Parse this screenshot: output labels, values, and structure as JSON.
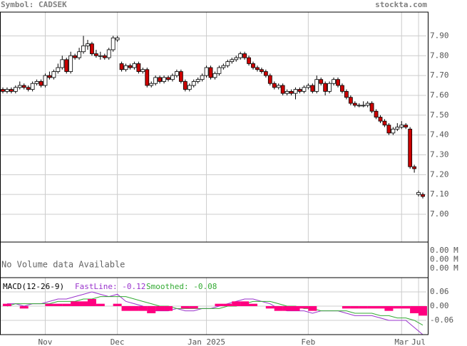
{
  "chart_data": {
    "type": "candlestick",
    "symbol": "Symbol: CADSEK",
    "site": "stockta.com",
    "candles": [
      [
        7.63,
        7.64,
        7.61,
        7.62
      ],
      [
        7.62,
        7.64,
        7.61,
        7.63
      ],
      [
        7.63,
        7.64,
        7.61,
        7.62
      ],
      [
        7.62,
        7.65,
        7.61,
        7.64
      ],
      [
        7.64,
        7.67,
        7.63,
        7.65
      ],
      [
        7.65,
        7.66,
        7.63,
        7.64
      ],
      [
        7.64,
        7.65,
        7.62,
        7.63
      ],
      [
        7.63,
        7.67,
        7.62,
        7.66
      ],
      [
        7.66,
        7.68,
        7.65,
        7.67
      ],
      [
        7.67,
        7.68,
        7.64,
        7.65
      ],
      [
        7.65,
        7.71,
        7.64,
        7.7
      ],
      [
        7.7,
        7.72,
        7.68,
        7.69
      ],
      [
        7.69,
        7.73,
        7.68,
        7.72
      ],
      [
        7.72,
        7.76,
        7.71,
        7.74
      ],
      [
        7.74,
        7.8,
        7.73,
        7.78
      ],
      [
        7.78,
        7.79,
        7.71,
        7.72
      ],
      [
        7.72,
        7.82,
        7.71,
        7.8
      ],
      [
        7.8,
        7.81,
        7.78,
        7.79
      ],
      [
        7.79,
        7.84,
        7.78,
        7.82
      ],
      [
        7.82,
        7.9,
        7.81,
        7.85
      ],
      [
        7.85,
        7.88,
        7.83,
        7.86
      ],
      [
        7.86,
        7.87,
        7.8,
        7.81
      ],
      [
        7.81,
        7.83,
        7.79,
        7.8
      ],
      [
        7.8,
        7.82,
        7.78,
        7.8
      ],
      [
        7.8,
        7.81,
        7.78,
        7.79
      ],
      [
        7.79,
        7.84,
        7.78,
        7.83
      ],
      [
        7.83,
        7.9,
        7.82,
        7.89
      ],
      [
        7.88,
        7.9,
        7.87,
        7.89
      ],
      [
        7.76,
        7.77,
        7.72,
        7.73
      ],
      [
        7.73,
        7.76,
        7.72,
        7.75
      ],
      [
        7.75,
        7.76,
        7.73,
        7.74
      ],
      [
        7.74,
        7.77,
        7.73,
        7.76
      ],
      [
        7.76,
        7.77,
        7.71,
        7.72
      ],
      [
        7.72,
        7.74,
        7.71,
        7.73
      ],
      [
        7.73,
        7.74,
        7.64,
        7.65
      ],
      [
        7.65,
        7.67,
        7.64,
        7.66
      ],
      [
        7.66,
        7.7,
        7.65,
        7.69
      ],
      [
        7.69,
        7.7,
        7.66,
        7.67
      ],
      [
        7.67,
        7.7,
        7.66,
        7.69
      ],
      [
        7.69,
        7.7,
        7.67,
        7.68
      ],
      [
        7.68,
        7.71,
        7.67,
        7.7
      ],
      [
        7.7,
        7.73,
        7.69,
        7.72
      ],
      [
        7.72,
        7.73,
        7.66,
        7.67
      ],
      [
        7.67,
        7.68,
        7.62,
        7.63
      ],
      [
        7.63,
        7.66,
        7.62,
        7.65
      ],
      [
        7.65,
        7.68,
        7.64,
        7.67
      ],
      [
        7.67,
        7.69,
        7.66,
        7.68
      ],
      [
        7.68,
        7.71,
        7.67,
        7.7
      ],
      [
        7.7,
        7.75,
        7.69,
        7.74
      ],
      [
        7.74,
        7.75,
        7.68,
        7.69
      ],
      [
        7.69,
        7.72,
        7.68,
        7.71
      ],
      [
        7.71,
        7.75,
        7.7,
        7.74
      ],
      [
        7.74,
        7.76,
        7.73,
        7.75
      ],
      [
        7.75,
        7.78,
        7.74,
        7.77
      ],
      [
        7.77,
        7.79,
        7.76,
        7.78
      ],
      [
        7.78,
        7.8,
        7.77,
        7.79
      ],
      [
        7.79,
        7.82,
        7.78,
        7.81
      ],
      [
        7.81,
        7.82,
        7.78,
        7.79
      ],
      [
        7.79,
        7.8,
        7.75,
        7.76
      ],
      [
        7.76,
        7.77,
        7.73,
        7.74
      ],
      [
        7.74,
        7.75,
        7.72,
        7.73
      ],
      [
        7.73,
        7.74,
        7.71,
        7.72
      ],
      [
        7.72,
        7.73,
        7.69,
        7.7
      ],
      [
        7.7,
        7.71,
        7.65,
        7.66
      ],
      [
        7.66,
        7.67,
        7.63,
        7.64
      ],
      [
        7.64,
        7.66,
        7.63,
        7.65
      ],
      [
        7.65,
        7.66,
        7.6,
        7.61
      ],
      [
        7.61,
        7.63,
        7.6,
        7.62
      ],
      [
        7.62,
        7.63,
        7.6,
        7.61
      ],
      [
        7.61,
        7.64,
        7.58,
        7.63
      ],
      [
        7.63,
        7.64,
        7.61,
        7.62
      ],
      [
        7.62,
        7.65,
        7.61,
        7.64
      ],
      [
        7.64,
        7.66,
        7.63,
        7.65
      ],
      [
        7.65,
        7.66,
        7.61,
        7.62
      ],
      [
        7.62,
        7.7,
        7.61,
        7.68
      ],
      [
        7.68,
        7.69,
        7.65,
        7.66
      ],
      [
        7.66,
        7.67,
        7.6,
        7.62
      ],
      [
        7.62,
        7.67,
        7.61,
        7.66
      ],
      [
        7.66,
        7.69,
        7.65,
        7.68
      ],
      [
        7.68,
        7.69,
        7.64,
        7.65
      ],
      [
        7.65,
        7.66,
        7.61,
        7.62
      ],
      [
        7.62,
        7.63,
        7.58,
        7.59
      ],
      [
        7.59,
        7.6,
        7.55,
        7.56
      ],
      [
        7.56,
        7.57,
        7.54,
        7.55
      ],
      [
        7.55,
        7.56,
        7.54,
        7.55
      ],
      [
        7.55,
        7.57,
        7.54,
        7.55
      ],
      [
        7.55,
        7.57,
        7.54,
        7.56
      ],
      [
        7.56,
        7.57,
        7.51,
        7.52
      ],
      [
        7.52,
        7.53,
        7.48,
        7.49
      ],
      [
        7.49,
        7.5,
        7.46,
        7.47
      ],
      [
        7.47,
        7.48,
        7.44,
        7.45
      ],
      [
        7.45,
        7.46,
        7.4,
        7.41
      ],
      [
        7.41,
        7.44,
        7.4,
        7.43
      ],
      [
        7.43,
        7.46,
        7.42,
        7.44
      ],
      [
        7.44,
        7.47,
        7.43,
        7.45
      ],
      [
        7.45,
        7.46,
        7.43,
        7.44
      ],
      [
        7.43,
        7.44,
        7.23,
        7.24
      ],
      [
        7.24,
        7.25,
        7.21,
        7.23
      ],
      [
        7.1,
        7.12,
        7.09,
        7.11
      ],
      [
        7.1,
        7.11,
        7.08,
        7.09
      ]
    ],
    "up_color": "#ffffff",
    "down_color": "#cc0000",
    "xlim": [
      -0.67,
      99.84
    ],
    "xticks": [
      {
        "value": 10,
        "label": "Nov"
      },
      {
        "value": 27,
        "label": "Dec"
      },
      {
        "value": 48,
        "label": "Jan 2025"
      },
      {
        "value": 72,
        "label": "Feb"
      },
      {
        "value": 94,
        "label": "Mar"
      },
      {
        "value": 98,
        "label": "Jul"
      }
    ],
    "ylim": [
      6.86,
      8.02
    ],
    "yticks": [
      {
        "value": 7.9,
        "label": "7.90"
      },
      {
        "value": 7.8,
        "label": "7.80"
      },
      {
        "value": 7.7,
        "label": "7.70"
      },
      {
        "value": 7.6,
        "label": "7.60"
      },
      {
        "value": 7.5,
        "label": "7.50"
      },
      {
        "value": 7.4,
        "label": "7.40"
      },
      {
        "value": 7.3,
        "label": "7.30"
      },
      {
        "value": 7.2,
        "label": "7.20"
      },
      {
        "value": 7.1,
        "label": "7.10"
      },
      {
        "value": 7.0,
        "label": "7.00"
      }
    ],
    "grid": true,
    "volume": {
      "note": "No Volume data Available",
      "labels": [
        "0.00 M",
        "0.00 M",
        "0.00 M"
      ]
    },
    "macd": {
      "title": "MACD(12-26-9)",
      "fast_label": "FastLine: -0.12",
      "smooth_label": "Smoothed: -0.08",
      "step": 2,
      "offset": 1,
      "ylim": [
        -0.12,
        0.12
      ],
      "yticks": [
        0.06,
        {
          "value": 0,
          "label": "0.00"
        },
        -0.06
      ],
      "series": [
        {
          "name": "FastLine",
          "color": "#9933cc",
          "values": [
            0.01,
            0.01,
            0.0,
            0.01,
            0.01,
            0.02,
            0.03,
            0.03,
            0.04,
            0.05,
            0.06,
            0.05,
            0.04,
            0.05,
            0.02,
            0.01,
            0.0,
            -0.02,
            -0.02,
            -0.02,
            -0.01,
            -0.02,
            -0.02,
            -0.01,
            -0.01,
            0.0,
            0.01,
            0.02,
            0.03,
            0.03,
            0.02,
            0.01,
            -0.01,
            -0.02,
            -0.02,
            -0.02,
            -0.03,
            -0.02,
            -0.02,
            -0.02,
            -0.03,
            -0.04,
            -0.04,
            -0.04,
            -0.05,
            -0.06,
            -0.06,
            -0.06,
            -0.09,
            -0.12
          ]
        },
        {
          "name": "Smoothed",
          "color": "#33aa33",
          "values": [
            0.0,
            0.01,
            0.01,
            0.01,
            0.01,
            0.01,
            0.02,
            0.02,
            0.02,
            0.03,
            0.03,
            0.04,
            0.04,
            0.04,
            0.04,
            0.03,
            0.02,
            0.01,
            0.0,
            0.0,
            -0.01,
            -0.01,
            -0.01,
            -0.01,
            -0.01,
            -0.01,
            0.0,
            0.0,
            0.01,
            0.02,
            0.02,
            0.02,
            0.01,
            0.0,
            0.0,
            -0.01,
            -0.01,
            -0.02,
            -0.02,
            -0.02,
            -0.02,
            -0.03,
            -0.03,
            -0.03,
            -0.04,
            -0.04,
            -0.05,
            -0.05,
            -0.06,
            -0.08
          ]
        },
        {
          "name": "Histogram",
          "color": "#ff0080",
          "values": [
            0.01,
            0.0,
            -0.01,
            0.0,
            0.0,
            0.01,
            0.01,
            0.01,
            0.02,
            0.02,
            0.03,
            0.01,
            0.0,
            0.01,
            -0.02,
            -0.02,
            -0.02,
            -0.03,
            -0.02,
            -0.02,
            0.0,
            -0.01,
            -0.01,
            0.0,
            0.0,
            0.01,
            0.01,
            0.02,
            0.02,
            0.01,
            0.0,
            -0.01,
            -0.02,
            -0.02,
            -0.02,
            -0.01,
            -0.02,
            0.0,
            0.0,
            0.0,
            -0.01,
            -0.01,
            -0.01,
            -0.01,
            -0.01,
            -0.02,
            -0.01,
            -0.01,
            -0.03,
            -0.04
          ]
        }
      ]
    }
  }
}
